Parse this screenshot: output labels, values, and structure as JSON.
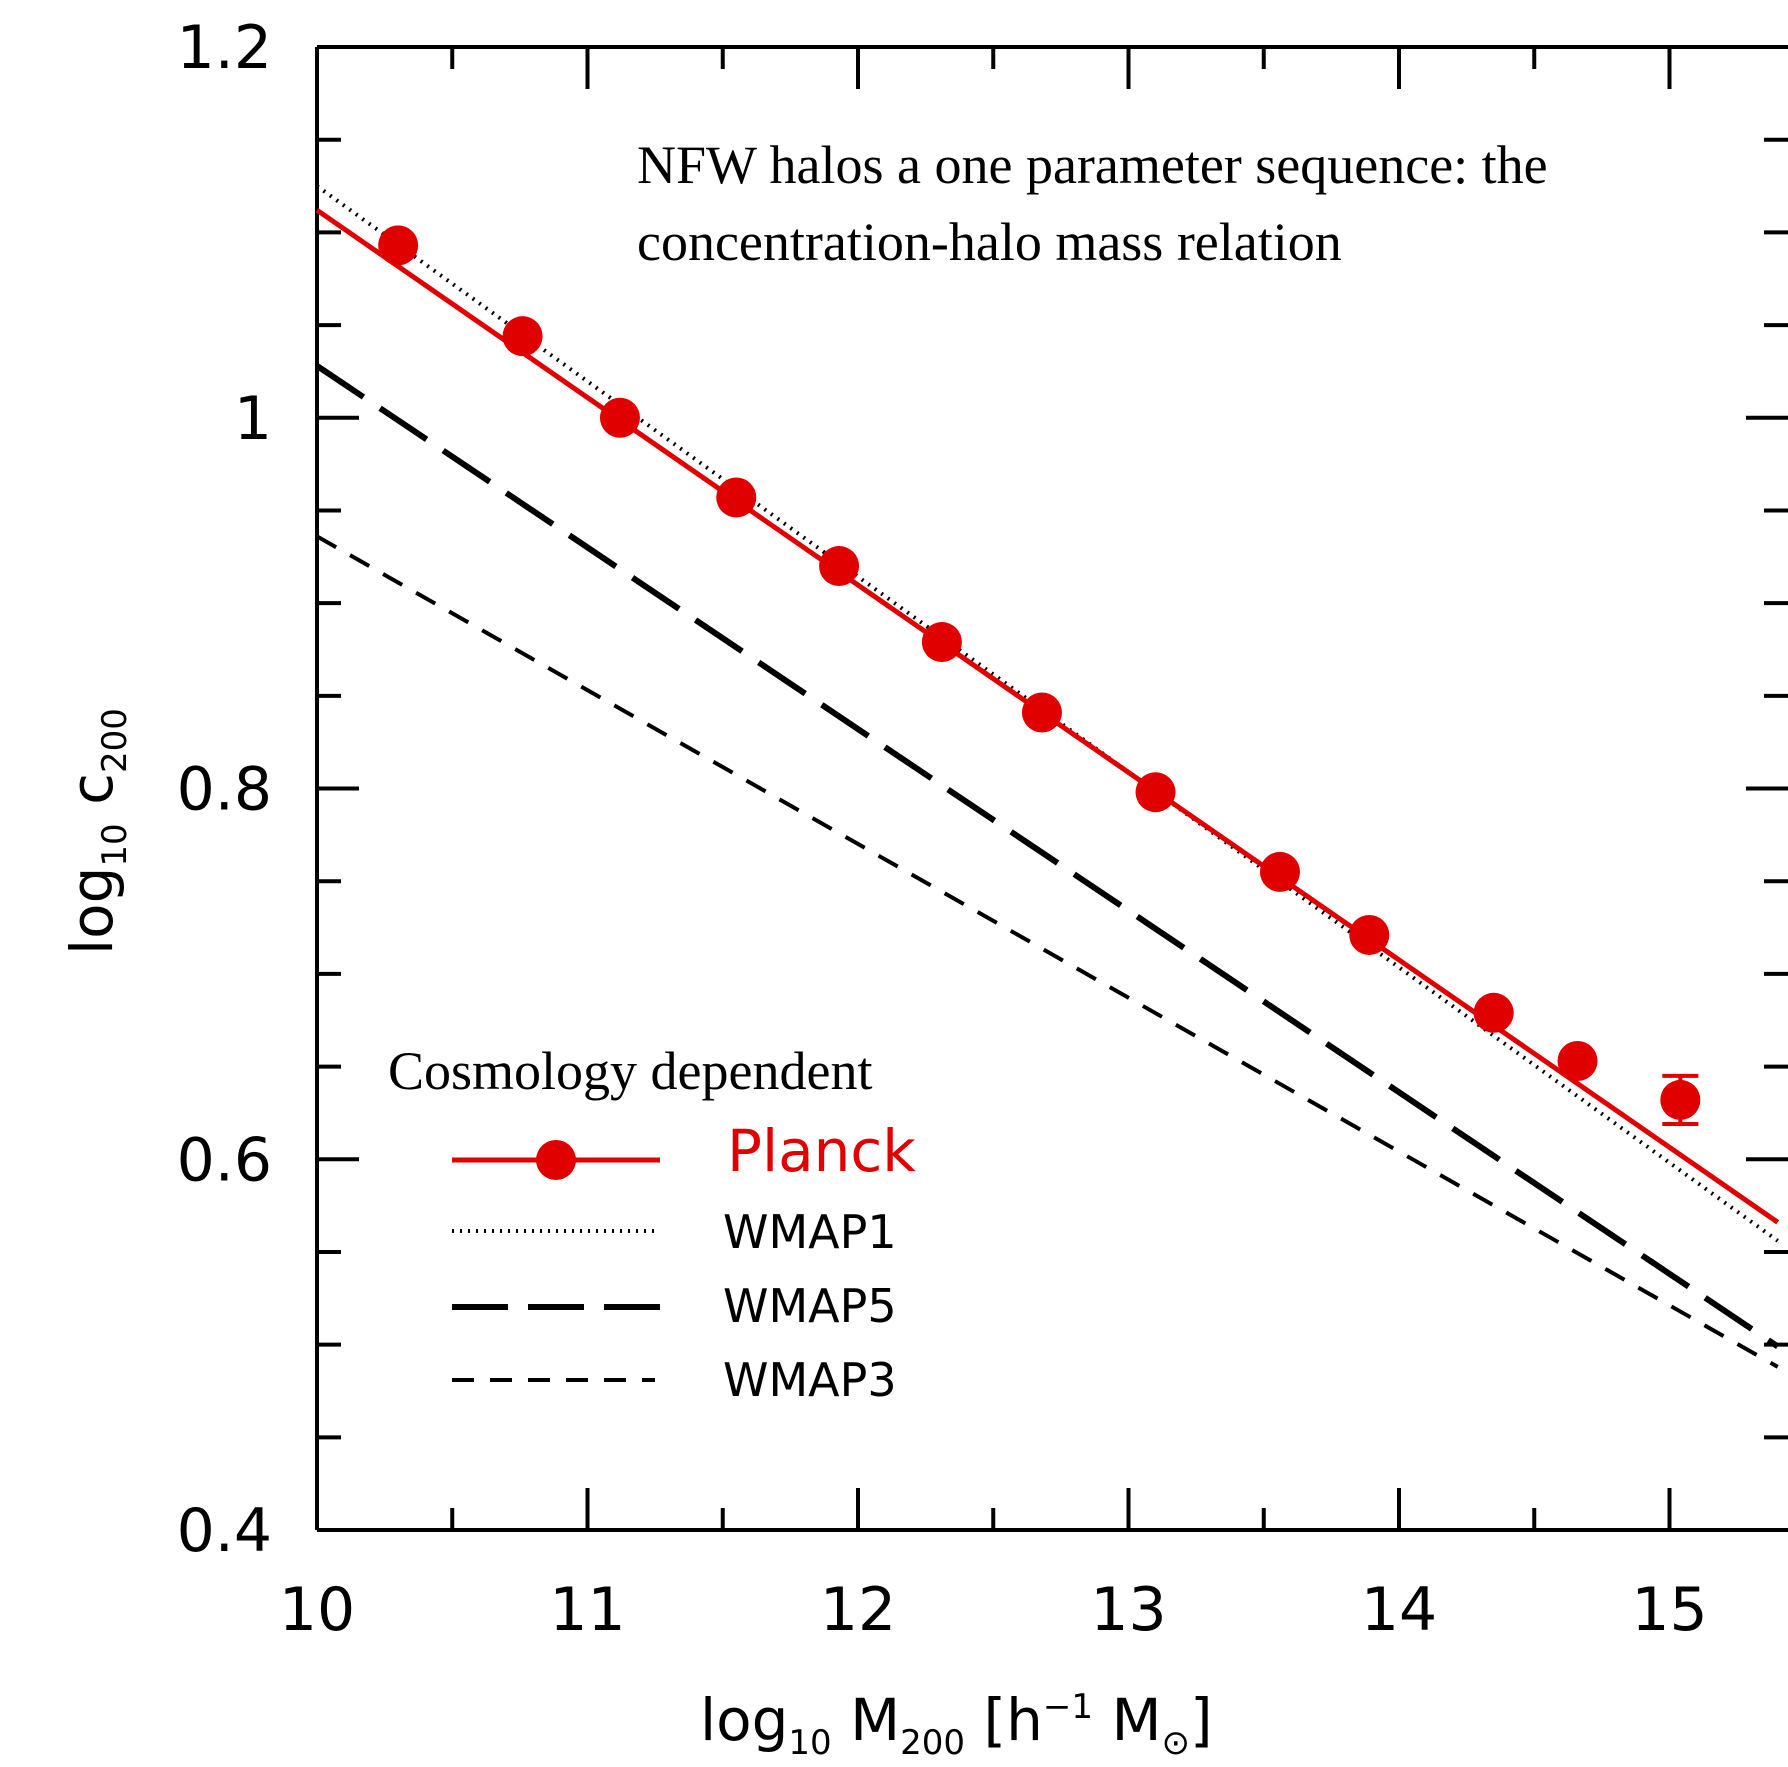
{
  "chart_data": {
    "type": "line",
    "title": "",
    "annotation": {
      "line1": "NFW halos a one parameter sequence: the",
      "line2": "concentration-halo mass relation"
    },
    "legend_title": "Cosmology dependent",
    "legend_placement": "lower-left",
    "xlabel": {
      "pre": "log",
      "pre_sub": "10",
      "var": " M",
      "var_sub": "200",
      "post": " [h",
      "post_sup": "−1",
      "unit": " M",
      "unit_sub": "⊙",
      "close": "]"
    },
    "ylabel": {
      "pre": "log",
      "pre_sub": "10",
      "var": " c",
      "var_sub": "200"
    },
    "xlim": [
      10,
      15.4
    ],
    "ylim": [
      0.4,
      1.2
    ],
    "x_ticks": [
      "10",
      "11",
      "12",
      "13",
      "14",
      "15"
    ],
    "y_ticks": [
      "0.4",
      "0.6",
      "0.8",
      "1",
      "1.2"
    ],
    "colors": {
      "planck": "#e00000",
      "wmap": "#000000"
    },
    "series": [
      {
        "name": "Planck",
        "style": "solid-markers",
        "x": [
          10.0,
          15.4
        ],
        "y": [
          1.112,
          0.566
        ],
        "points": {
          "x": [
            10.3,
            10.76,
            11.12,
            11.55,
            11.93,
            12.31,
            12.68,
            13.1,
            13.56,
            13.89,
            14.35,
            14.66,
            15.04
          ],
          "y": [
            1.093,
            1.044,
            1.0,
            0.957,
            0.92,
            0.879,
            0.841,
            0.798,
            0.755,
            0.721,
            0.679,
            0.653,
            0.632
          ],
          "yerr": [
            0,
            0,
            0,
            0,
            0,
            0,
            0,
            0,
            0,
            0,
            0,
            0,
            0.013
          ]
        }
      },
      {
        "name": "WMAP1",
        "style": "dotted",
        "x": [
          10.0,
          15.4
        ],
        "y": [
          1.125,
          0.556
        ]
      },
      {
        "name": "WMAP5",
        "style": "long-dash",
        "x": [
          10.0,
          15.4
        ],
        "y": [
          1.028,
          0.499
        ]
      },
      {
        "name": "WMAP3",
        "style": "short-dash",
        "x": [
          10.0,
          15.4
        ],
        "y": [
          0.936,
          0.488
        ]
      }
    ],
    "grid": false
  }
}
